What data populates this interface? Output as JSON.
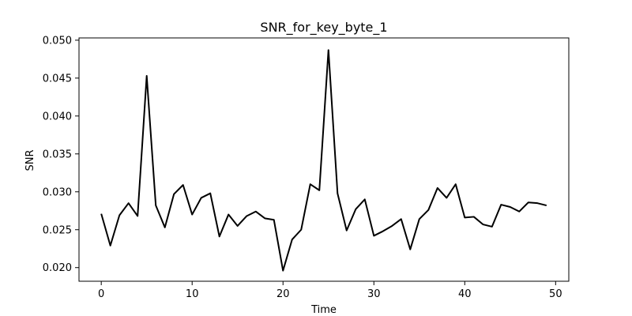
{
  "chart_data": {
    "type": "line",
    "title": "SNR_for_key_byte_1",
    "xlabel": "Time",
    "ylabel": "SNR",
    "xlim": [
      -2.45,
      51.45
    ],
    "ylim": [
      0.0182,
      0.0503
    ],
    "xticks": [
      0,
      10,
      20,
      30,
      40,
      50
    ],
    "xtick_labels": [
      "0",
      "10",
      "20",
      "30",
      "40",
      "50"
    ],
    "yticks": [
      0.02,
      0.025,
      0.03,
      0.035,
      0.04,
      0.045,
      0.05
    ],
    "ytick_labels": [
      "0.020",
      "0.025",
      "0.030",
      "0.035",
      "0.040",
      "0.045",
      "0.050"
    ],
    "grid": false,
    "legend": "none",
    "series": [
      {
        "color": "#000000",
        "x": [
          0,
          1,
          2,
          3,
          4,
          5,
          6,
          7,
          8,
          9,
          10,
          11,
          12,
          13,
          14,
          15,
          16,
          17,
          18,
          19,
          20,
          21,
          22,
          23,
          24,
          25,
          26,
          27,
          28,
          29,
          30,
          31,
          32,
          33,
          34,
          35,
          36,
          37,
          38,
          39,
          40,
          41,
          42,
          43,
          44,
          45,
          46,
          47,
          48,
          49
        ],
        "values": [
          0.0271,
          0.0229,
          0.0269,
          0.0285,
          0.0268,
          0.0453,
          0.0282,
          0.0253,
          0.0297,
          0.0309,
          0.027,
          0.0292,
          0.0298,
          0.0241,
          0.027,
          0.0255,
          0.0268,
          0.0274,
          0.0265,
          0.0263,
          0.0196,
          0.0237,
          0.025,
          0.031,
          0.0302,
          0.0487,
          0.0298,
          0.0249,
          0.0277,
          0.029,
          0.0242,
          0.0248,
          0.0255,
          0.0264,
          0.0224,
          0.0264,
          0.0276,
          0.0305,
          0.0292,
          0.031,
          0.0266,
          0.0267,
          0.0257,
          0.0254,
          0.0283,
          0.028,
          0.0274,
          0.0286,
          0.0285,
          0.0282
        ]
      }
    ]
  }
}
